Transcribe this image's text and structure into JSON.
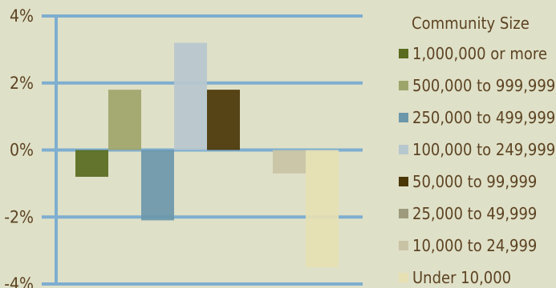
{
  "chart_data": {
    "type": "bar",
    "categories": [
      "1,000,000 or more",
      "500,000 to 999,999",
      "250,000 to 499,999",
      "100,000 to 249,999",
      "50,000 to 99,999",
      "25,000 to 49,999",
      "10,000 to 24,999",
      "Under 10,000"
    ],
    "values": [
      -0.8,
      1.8,
      -2.1,
      3.2,
      1.8,
      0.0,
      -0.7,
      -3.5
    ],
    "ylim": [
      -4,
      4
    ],
    "yticks": [
      4,
      2,
      0,
      -2,
      -4
    ],
    "ytick_labels": [
      "4%",
      "2%",
      "0%",
      "-2%",
      "-4%"
    ],
    "grid": true,
    "legend_position": "right",
    "title": "",
    "xlabel": "",
    "ylabel": "",
    "legend": {
      "title": "Community Size",
      "items": [
        {
          "label": "1,000,000 or more",
          "color": "#586b1e"
        },
        {
          "label": "500,000 to 999,999",
          "color": "#9ea56a"
        },
        {
          "label": "250,000 to 499,999",
          "color": "#6b97aa"
        },
        {
          "label": "100,000 to 249,999",
          "color": "#b7c7ce"
        },
        {
          "label": "50,000 to 99,999",
          "color": "#4a3606"
        },
        {
          "label": "25,000 to 49,999",
          "color": "#9d9a7e"
        },
        {
          "label": "10,000 to 24,999",
          "color": "#c9c3a5"
        },
        {
          "label": "Under 10,000",
          "color": "#e6e0b3"
        }
      ]
    },
    "colors": {
      "grid": "#7eaed0",
      "axis": "#7eaed0",
      "text": "#5c4322",
      "background": "#dfe0c8"
    }
  }
}
